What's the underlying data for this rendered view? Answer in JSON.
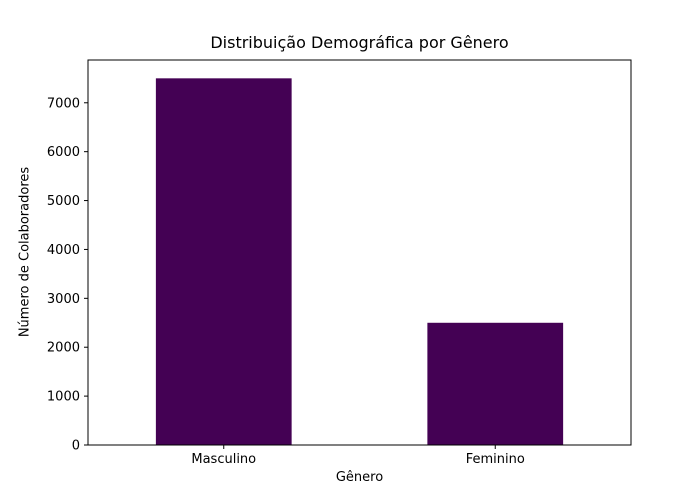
{
  "figure": {
    "background": "#ffffff",
    "text_color": "#000000",
    "spine_color": "#000000"
  },
  "chart_data": {
    "type": "bar",
    "title": "Distribuição Demográfica por Gênero",
    "xlabel": "Gênero",
    "ylabel": "Número de Colaboradores",
    "categories": [
      "Masculino",
      "Feminino"
    ],
    "values": [
      7500,
      2500
    ],
    "bar_color": "#440154",
    "bar_width_fraction": 0.5,
    "ylim": [
      0,
      7875
    ],
    "yticks": [
      0,
      1000,
      2000,
      3000,
      4000,
      5000,
      6000,
      7000
    ],
    "grid": false,
    "legend": "none"
  }
}
